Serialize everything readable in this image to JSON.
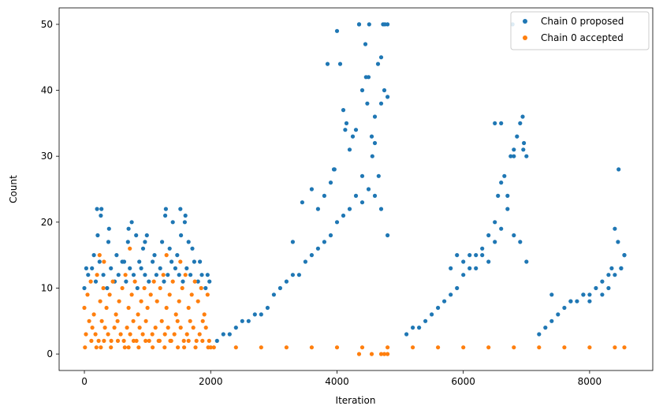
{
  "chart_data": {
    "type": "scatter",
    "title": "",
    "xlabel": "Iteration",
    "ylabel": "Count",
    "xlim": [
      -400,
      9000
    ],
    "ylim": [
      -2.5,
      52.5
    ],
    "xticks": [
      0,
      2000,
      4000,
      6000,
      8000
    ],
    "yticks": [
      0,
      10,
      20,
      30,
      40,
      50
    ],
    "grid": false,
    "legend_position": "top-right",
    "colors": {
      "proposed": "#1f77b4",
      "accepted": "#ff7f0e"
    },
    "series": [
      {
        "name": "Chain 0 proposed",
        "key": "proposed",
        "x": [
          0,
          60,
          120,
          180,
          240,
          300,
          360,
          420,
          480,
          540,
          600,
          660,
          720,
          780,
          840,
          900,
          960,
          1020,
          1080,
          1140,
          1200,
          1260,
          1320,
          1380,
          1440,
          1500,
          1560,
          1620,
          1680,
          1740,
          1800,
          1860,
          1920,
          1980,
          30,
          150,
          210,
          270,
          390,
          510,
          630,
          690,
          750,
          870,
          930,
          990,
          1110,
          1230,
          1290,
          1350,
          1470,
          1530,
          1590,
          1650,
          1710,
          1830,
          1950,
          200,
          260,
          380,
          700,
          820,
          960,
          1280,
          1400,
          1520,
          1600,
          2100,
          2200,
          2300,
          2400,
          2500,
          2600,
          2700,
          2800,
          2900,
          3000,
          3100,
          3200,
          3300,
          3400,
          3500,
          3600,
          3700,
          3800,
          3900,
          4000,
          4100,
          4200,
          4300,
          4400,
          4500,
          4600,
          4700,
          4800,
          3300,
          3450,
          3600,
          3700,
          3800,
          3900,
          3950,
          4000,
          4050,
          4100,
          4150,
          4200,
          4250,
          4300,
          4350,
          4400,
          4450,
          4500,
          4550,
          4600,
          4650,
          4700,
          4750,
          4800,
          3850,
          3960,
          4130,
          4350,
          4400,
          4460,
          4480,
          4510,
          4560,
          4600,
          4660,
          4700,
          4730,
          4760,
          4800,
          5100,
          5200,
          5300,
          5400,
          5500,
          5600,
          5700,
          5800,
          5900,
          6000,
          6100,
          6200,
          6300,
          6400,
          6500,
          6600,
          6700,
          6800,
          6900,
          7000,
          5800,
          5900,
          6000,
          6100,
          6200,
          6300,
          6400,
          6500,
          6550,
          6600,
          6650,
          6700,
          6750,
          6800,
          6850,
          6900,
          6950,
          7000,
          6500,
          6600,
          6780,
          6800,
          6940,
          6960,
          7200,
          7300,
          7400,
          7500,
          7600,
          7700,
          7800,
          7900,
          8000,
          8100,
          8200,
          8300,
          8400,
          8500,
          8550,
          7400,
          7700,
          7900,
          8000,
          8200,
          8300,
          8350,
          8400,
          8450,
          8500,
          8550,
          8460
        ],
        "y": [
          10,
          12,
          13,
          11,
          14,
          12,
          10,
          13,
          11,
          12,
          14,
          11,
          13,
          12,
          10,
          13,
          12,
          11,
          14,
          12,
          13,
          11,
          12,
          14,
          13,
          12,
          11,
          13,
          12,
          14,
          11,
          12,
          10,
          11,
          13,
          15,
          18,
          22,
          19,
          15,
          14,
          17,
          20,
          14,
          16,
          18,
          15,
          17,
          22,
          16,
          15,
          18,
          20,
          17,
          16,
          14,
          12,
          22,
          21,
          17,
          19,
          18,
          17,
          21,
          20,
          22,
          21,
          2,
          3,
          3,
          4,
          5,
          5,
          6,
          6,
          7,
          9,
          10,
          11,
          12,
          12,
          14,
          15,
          16,
          17,
          18,
          20,
          21,
          22,
          24,
          23,
          25,
          24,
          22,
          18,
          17,
          23,
          25,
          22,
          24,
          26,
          28,
          49,
          44,
          37,
          35,
          31,
          33,
          34,
          50,
          40,
          47,
          42,
          33,
          36,
          44,
          45,
          40,
          39,
          44,
          28,
          34,
          50,
          27,
          42,
          38,
          50,
          30,
          32,
          27,
          38,
          50,
          50,
          50,
          3,
          4,
          4,
          5,
          6,
          7,
          8,
          9,
          10,
          12,
          13,
          15,
          15,
          14,
          17,
          19,
          22,
          18,
          17,
          14,
          13,
          15,
          14,
          15,
          13,
          16,
          18,
          20,
          24,
          26,
          27,
          24,
          30,
          31,
          33,
          35,
          31,
          30,
          35,
          35,
          50,
          30,
          36,
          32,
          3,
          4,
          5,
          6,
          7,
          8,
          8,
          9,
          9,
          10,
          9,
          10,
          12,
          13,
          15,
          9,
          8,
          9,
          8,
          11,
          12,
          13,
          19,
          17,
          13,
          15,
          28
        ]
      },
      {
        "name": "Chain 0 accepted",
        "key": "accepted",
        "x": [
          0,
          50,
          100,
          150,
          200,
          250,
          300,
          350,
          400,
          450,
          500,
          550,
          600,
          650,
          700,
          750,
          800,
          850,
          900,
          950,
          1000,
          1050,
          1100,
          1150,
          1200,
          1250,
          1300,
          1350,
          1400,
          1450,
          1500,
          1550,
          1600,
          1650,
          1700,
          1750,
          1800,
          1850,
          1900,
          1950,
          2000,
          25,
          75,
          125,
          175,
          225,
          275,
          325,
          375,
          425,
          475,
          525,
          575,
          625,
          675,
          725,
          775,
          825,
          875,
          925,
          975,
          1025,
          1075,
          1125,
          1175,
          1225,
          1275,
          1325,
          1375,
          1425,
          1475,
          1525,
          1575,
          1625,
          1675,
          1725,
          1775,
          1825,
          1875,
          1925,
          1975,
          10,
          110,
          190,
          260,
          310,
          420,
          530,
          640,
          700,
          780,
          860,
          970,
          1080,
          1190,
          1270,
          1360,
          1480,
          1580,
          1650,
          1760,
          1870,
          1960,
          240,
          310,
          720,
          1300,
          1520,
          2050,
          2400,
          2800,
          3200,
          3600,
          4000,
          4400,
          4800,
          5200,
          5600,
          6000,
          6400,
          6800,
          7200,
          7600,
          8000,
          8400,
          8550,
          4350,
          4550,
          4700,
          4750,
          4800
        ],
        "y": [
          7,
          9,
          11,
          6,
          12,
          8,
          10,
          7,
          9,
          11,
          6,
          8,
          10,
          12,
          7,
          9,
          11,
          6,
          8,
          10,
          7,
          9,
          11,
          8,
          10,
          12,
          7,
          9,
          11,
          6,
          8,
          10,
          12,
          7,
          9,
          11,
          8,
          10,
          6,
          9,
          1,
          3,
          5,
          4,
          3,
          2,
          5,
          4,
          3,
          2,
          4,
          5,
          3,
          2,
          4,
          3,
          5,
          2,
          4,
          3,
          5,
          2,
          3,
          4,
          2,
          5,
          3,
          4,
          2,
          3,
          5,
          4,
          2,
          3,
          5,
          4,
          2,
          3,
          5,
          4,
          2,
          1,
          2,
          1,
          1,
          2,
          1,
          2,
          1,
          1,
          2,
          1,
          2,
          1,
          2,
          1,
          2,
          1,
          1,
          2,
          1,
          2,
          1,
          15,
          14,
          16,
          15,
          14,
          1,
          1,
          1,
          1,
          1,
          1,
          1,
          1,
          1,
          1,
          1,
          1,
          1,
          1,
          1,
          1,
          1,
          1,
          0,
          0,
          0,
          0,
          0
        ]
      }
    ]
  }
}
